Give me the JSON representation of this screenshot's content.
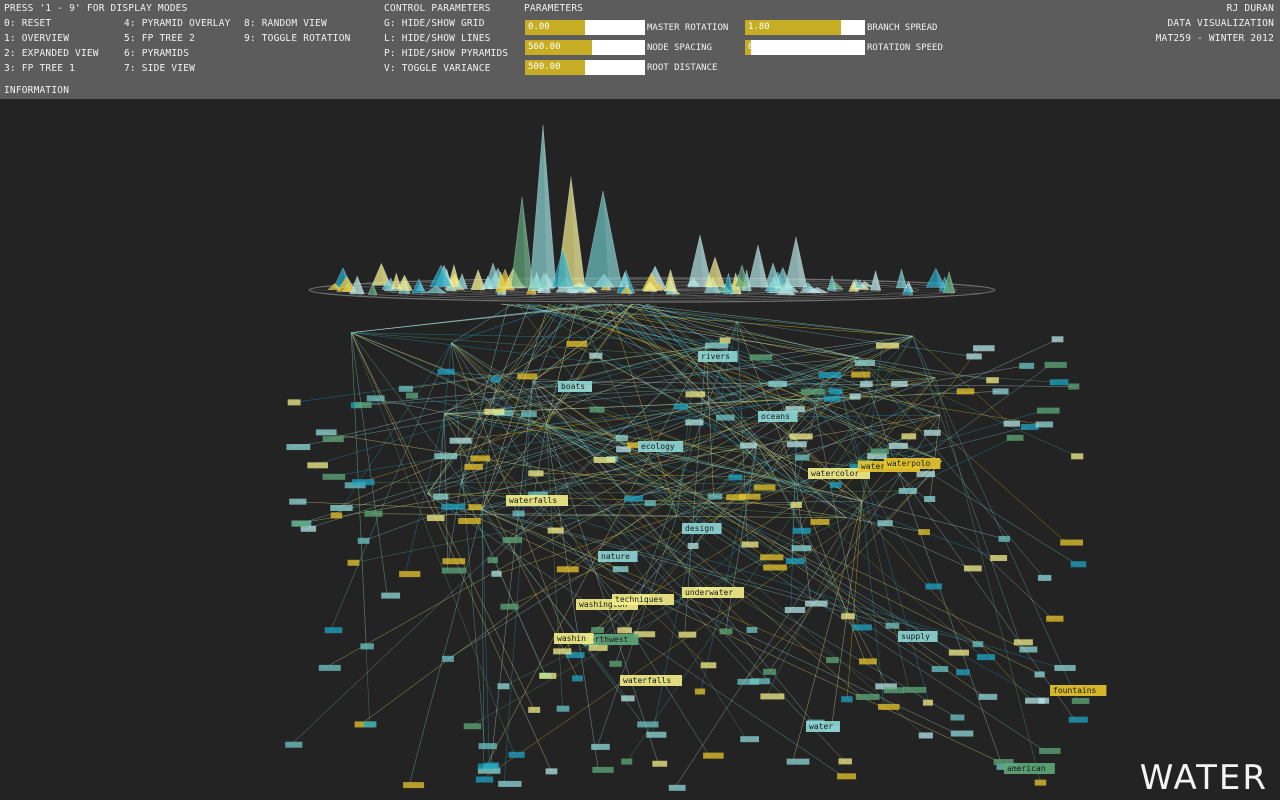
{
  "display_modes": {
    "heading": "PRESS '1 - 9' FOR DISPLAY MODES",
    "col1": [
      "0: RESET",
      "1: OVERVIEW",
      "2: EXPANDED VIEW",
      "3: FP TREE 1"
    ],
    "col2": [
      "4: PYRAMID OVERLAY",
      "5: FP TREE 2",
      "6: PYRAMIDS",
      "7: SIDE VIEW"
    ],
    "col3": [
      "8: RANDOM VIEW",
      "9: TOGGLE ROTATION"
    ],
    "info": "INFORMATION"
  },
  "control": {
    "heading": "CONTROL PARAMETERS",
    "items": [
      "G: HIDE/SHOW GRID",
      "L: HIDE/SHOW LINES",
      "P: HIDE/SHOW PYRAMIDS",
      "V: TOGGLE VARIANCE"
    ]
  },
  "parameters": {
    "heading": "PARAMETERS",
    "sliders": [
      {
        "label": "MASTER ROTATION",
        "value": "0.00",
        "fill": 0.5
      },
      {
        "label": "NODE SPACING",
        "value": "560.00",
        "fill": 0.56
      },
      {
        "label": "ROOT DISTANCE",
        "value": "500.00",
        "fill": 0.5
      },
      {
        "label": "BRANCH SPREAD",
        "value": "1.80",
        "fill": 0.8
      },
      {
        "label": "ROTATION SPEED",
        "value": "0",
        "fill": 0.05
      }
    ]
  },
  "credits": [
    "RJ DURAN",
    "DATA VISUALIZATION",
    "MAT259 - WINTER 2012"
  ],
  "scene_title": "WATER",
  "node_labels": [
    {
      "text": "waterfalls",
      "color": "#f5f08a"
    },
    {
      "text": "watercolor",
      "color": "#f5f08a"
    },
    {
      "text": "underwater",
      "color": "#f5f08a"
    },
    {
      "text": "washington",
      "color": "#f5f08a"
    },
    {
      "text": "techniques",
      "color": "#f5f08a"
    },
    {
      "text": "northwest",
      "color": "#5fa87a"
    },
    {
      "text": "washin",
      "color": "#f5f08a"
    },
    {
      "text": "waterfalls",
      "color": "#f5f08a"
    },
    {
      "text": "watersheds",
      "color": "#e8c62c"
    },
    {
      "text": "waterpolo",
      "color": "#e8c62c"
    },
    {
      "text": "water",
      "color": "#8fd8d8"
    },
    {
      "text": "design",
      "color": "#8fd8d8"
    },
    {
      "text": "american",
      "color": "#5fa87a"
    },
    {
      "text": "nature",
      "color": "#8fd8d8"
    },
    {
      "text": "fountains",
      "color": "#e8c62c"
    },
    {
      "text": "ecology",
      "color": "#8fd8d8"
    },
    {
      "text": "boats",
      "color": "#8fd8d8"
    },
    {
      "text": "rivers",
      "color": "#8fd8d8"
    },
    {
      "text": "oceans",
      "color": "#8fd8d8"
    },
    {
      "text": "supply",
      "color": "#8fd8d8"
    }
  ],
  "colors": {
    "background": "#232323",
    "panel": "#5c5c5c",
    "slider_fill": "#c7ad23",
    "palette": [
      "#8fd8d8",
      "#6fc6c6",
      "#1fa6c4",
      "#e8c62c",
      "#f5f08a",
      "#5fa87a",
      "#b6e6e6"
    ]
  }
}
